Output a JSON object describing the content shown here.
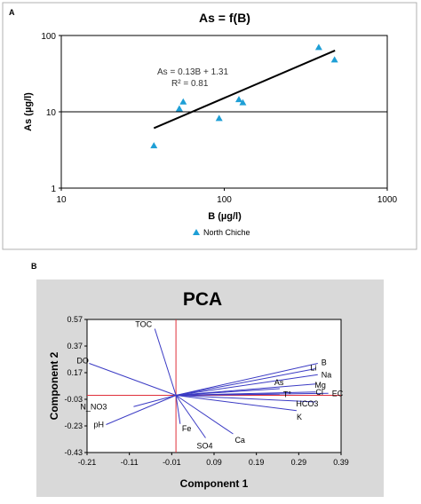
{
  "panel_a": {
    "label": "A",
    "title": "As = f(B)",
    "equation": "As = 0.13B + 1.31",
    "r_squared": "R² = 0.81",
    "xlabel": "B (µg/l)",
    "ylabel": "As (µg/l)",
    "legend": "North Chiche"
  },
  "panel_b": {
    "label": "B",
    "title": "PCA",
    "xlabel": "Component 1",
    "ylabel": "Component 2"
  },
  "colors": {
    "marker": "#1e9fd6",
    "trend": "#000000",
    "vector": "#3b3bc4",
    "axis_cross": "#e0303a",
    "pca_bg": "#d9d9d9",
    "pca_plot": "#ffffff"
  },
  "chart_data": [
    {
      "type": "scatter",
      "title": "As = f(B)",
      "xlabel": "B (µg/l)",
      "ylabel": "As (µg/l)",
      "xscale": "log",
      "yscale": "log",
      "xlim": [
        10,
        1000
      ],
      "ylim": [
        1,
        100
      ],
      "xticks": [
        10,
        100,
        1000
      ],
      "yticks": [
        1,
        10,
        100
      ],
      "xtick_labels": [
        "10",
        "100",
        "1000"
      ],
      "ytick_labels": [
        "1",
        "10",
        "100"
      ],
      "grid": "horizontal",
      "legend_position": "bottom",
      "series": [
        {
          "name": "North Chiche",
          "marker": "triangle",
          "x": [
            37,
            53,
            56,
            93,
            123,
            130,
            380,
            475
          ],
          "y": [
            3.6,
            11,
            13.5,
            8.2,
            14.5,
            13.2,
            70,
            48
          ]
        }
      ],
      "trendline": {
        "label": "As = 0.13B + 1.31",
        "r2_label": "R² = 0.81",
        "x": [
          37,
          478
        ],
        "y": [
          6.1,
          63.5
        ]
      }
    },
    {
      "type": "biplot",
      "title": "PCA",
      "xlabel": "Component 1",
      "ylabel": "Component 2",
      "xlim": [
        -0.21,
        0.39
      ],
      "ylim": [
        -0.43,
        0.57
      ],
      "xticks": [
        -0.21,
        -0.11,
        -0.01,
        0.09,
        0.19,
        0.29,
        0.39
      ],
      "yticks": [
        0.57,
        0.37,
        0.17,
        -0.03,
        -0.23,
        -0.43
      ],
      "xtick_labels": [
        "-0.21",
        "-0.11",
        "-0.01",
        "0.09",
        "0.19",
        "0.29",
        "0.39"
      ],
      "ytick_labels": [
        "0.57",
        "0.37",
        "0.17",
        "-0.03",
        "-0.23",
        "-0.43"
      ],
      "origin": [
        0,
        0
      ],
      "vectors": [
        {
          "name": "TOC",
          "x": -0.05,
          "y": 0.5
        },
        {
          "name": "DO",
          "x": -0.205,
          "y": 0.24
        },
        {
          "name": "B",
          "x": 0.335,
          "y": 0.24
        },
        {
          "name": "Li",
          "x": 0.33,
          "y": 0.2
        },
        {
          "name": "Na",
          "x": 0.335,
          "y": 0.155
        },
        {
          "name": "Mg",
          "x": 0.33,
          "y": 0.085
        },
        {
          "name": "As",
          "x": 0.245,
          "y": 0.05
        },
        {
          "name": "T°",
          "x": 0.245,
          "y": 0.008
        },
        {
          "name": "Cl",
          "x": 0.33,
          "y": 0.025
        },
        {
          "name": "EC",
          "x": 0.36,
          "y": 0.015
        },
        {
          "name": "HCO3",
          "x": 0.33,
          "y": -0.05
        },
        {
          "name": "K",
          "x": 0.285,
          "y": -0.115
        },
        {
          "name": "N_NO3",
          "x": -0.1,
          "y": -0.085
        },
        {
          "name": "pH",
          "x": -0.165,
          "y": -0.22
        },
        {
          "name": "Fe",
          "x": 0.01,
          "y": -0.215
        },
        {
          "name": "SO4",
          "x": 0.07,
          "y": -0.32
        },
        {
          "name": "Ca",
          "x": 0.135,
          "y": -0.29
        }
      ]
    }
  ]
}
